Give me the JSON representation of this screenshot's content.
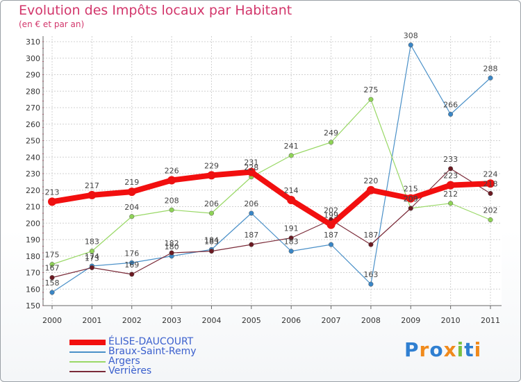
{
  "chart_data": {
    "type": "line",
    "title": "Evolution des Impôts locaux par Habitant",
    "subtitle": "(en € et par an)",
    "xlabel": "",
    "ylabel": "",
    "x": [
      "2000",
      "2001",
      "2002",
      "2003",
      "2004",
      "2005",
      "2006",
      "2007",
      "2008",
      "2009",
      "2010",
      "2011"
    ],
    "ylim": [
      150,
      310
    ],
    "yticks": [
      150,
      160,
      170,
      180,
      190,
      200,
      210,
      220,
      230,
      240,
      250,
      260,
      270,
      280,
      290,
      300,
      310
    ],
    "grid": true,
    "legend_position": "bottom-left",
    "series": [
      {
        "name": "Braux-Saint-Remy",
        "color": "#4a90c8",
        "marker_color": "#3a86c6",
        "width": 1.2,
        "values": [
          158,
          174,
          176,
          180,
          184,
          206,
          183,
          187,
          163,
          308,
          266,
          288
        ]
      },
      {
        "name": "Argers",
        "color": "#99d866",
        "marker_color": "#8fd357",
        "width": 1.2,
        "values": [
          175,
          183,
          204,
          208,
          206,
          228,
          241,
          249,
          275,
          209,
          212,
          202
        ]
      },
      {
        "name": "Verrières",
        "color": "#7a2a38",
        "marker_color": "#6b1a22",
        "width": 1.2,
        "values": [
          167,
          173,
          169,
          182,
          183,
          187,
          191,
          202,
          187,
          209,
          233,
          218
        ]
      },
      {
        "name": "ÉLISE-DAUCOURT",
        "color": "#f20f0f",
        "marker_color": "#ee1111",
        "width": 8,
        "values": [
          213,
          217,
          219,
          226,
          229,
          231,
          214,
          199,
          220,
          215,
          223,
          224
        ]
      }
    ],
    "legend": [
      {
        "label": "ÉLISE-DAUCOURT",
        "color": "#f20f0f",
        "text_color": "#3a5fcd",
        "width": 8
      },
      {
        "label": "Braux-Saint-Remy",
        "color": "#4a90c8",
        "text_color": "#3a5fcd",
        "width": 2
      },
      {
        "label": "Argers",
        "color": "#99d866",
        "text_color": "#3a5fcd",
        "width": 2
      },
      {
        "label": "Verrières",
        "color": "#7a2a38",
        "text_color": "#3a5fcd",
        "width": 2
      }
    ]
  },
  "logo": {
    "letters": [
      "P",
      "r",
      "o",
      "x",
      "i",
      "t",
      "i"
    ],
    "colors": [
      "#2f7fd1",
      "#f08a1c",
      "#2f7fd1",
      "#f08a1c",
      "#7ac143",
      "#2f7fd1",
      "#f08a1c"
    ]
  }
}
